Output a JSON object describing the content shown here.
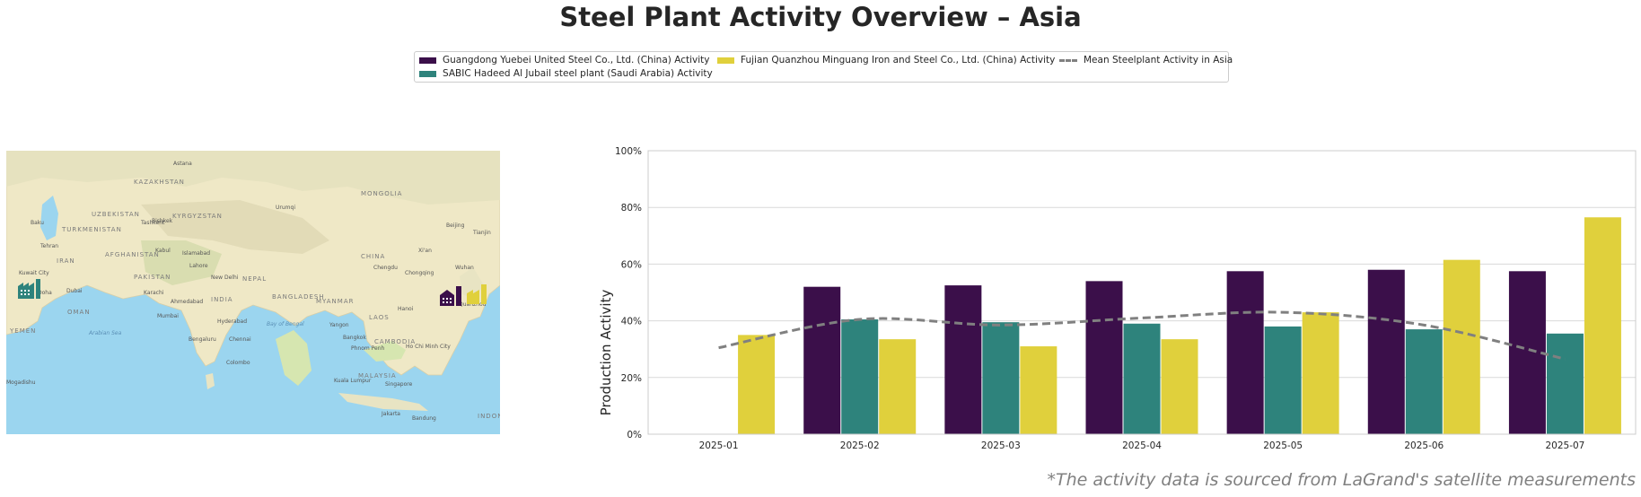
{
  "title": "Steel Plant Activity Overview – Asia",
  "footnote": "*The activity data is sourced from LaGrand's satellite measurements",
  "legend": {
    "items": [
      {
        "label": "Guangdong Yuebei United Steel Co., Ltd. (China) Activity",
        "color": "#3b0f4a",
        "kind": "bar"
      },
      {
        "label": "SABIC Hadeed Al Jubail steel plant (Saudi Arabia) Activity",
        "color": "#2e837c",
        "kind": "bar"
      },
      {
        "label": "Fujian Quanzhou Minguang Iron and Steel Co., Ltd. (China) Activity",
        "color": "#e0d03c",
        "kind": "bar"
      },
      {
        "label": "Mean Steelplant Activity in Asia",
        "color": "#808080",
        "kind": "dashed-line"
      }
    ]
  },
  "map": {
    "labels": [
      "Astana",
      "KAZAKHSTAN",
      "MONGOLIA",
      "Bishkek",
      "UZBEKISTAN",
      "KYRGYZSTAN",
      "Tashkent",
      "TURKMENISTAN",
      "Urumqi",
      "Beijing",
      "Tianjin",
      "Baku",
      "Tehran",
      "IRAN",
      "AFGHANISTAN",
      "Kabul",
      "Islamabad",
      "CHINA",
      "Xi'an",
      "Lahore",
      "PAKISTAN",
      "New Delhi",
      "NEPAL",
      "Chengdu",
      "Chongqing",
      "Wuhan",
      "Kuwait City",
      "Doha",
      "Dubai",
      "Karachi",
      "Ahmedabad",
      "INDIA",
      "BANGLADESH",
      "MYANMAR",
      "Hanoi",
      "Quanzhou",
      "OMAN",
      "Mumbai",
      "Hyderabad",
      "Bay of Bengal",
      "Yangon",
      "LAOS",
      "Bangkok",
      "CAMBODIA",
      "Ho Chi Minh City",
      "Arabian Sea",
      "YEMEN",
      "Bengaluru",
      "Chennai",
      "Phnom Penh",
      "Colombo",
      "MALAYSIA",
      "Kuala Lumpur",
      "Singapore",
      "Jakarta",
      "Bandung",
      "INDONESIA",
      "Mogadishu"
    ],
    "markers": [
      {
        "name": "SABIC Hadeed Al Jubail steel plant",
        "color": "#2e837c",
        "icon": "factory-icon"
      },
      {
        "name": "Guangdong Yuebei United Steel Co., Ltd.",
        "color": "#3b0f4a",
        "icon": "factory-icon"
      },
      {
        "name": "Fujian Quanzhou Minguang Iron and Steel Co., Ltd.",
        "color": "#e0d03c",
        "icon": "factory-icon"
      }
    ]
  },
  "chart_data": {
    "type": "bar",
    "title": "",
    "xlabel": "",
    "ylabel": "Production Activity",
    "categories": [
      "2025-01",
      "2025-02",
      "2025-03",
      "2025-04",
      "2025-05",
      "2025-06",
      "2025-07"
    ],
    "ylim": [
      0,
      100
    ],
    "yticks": [
      "0%",
      "20%",
      "40%",
      "60%",
      "80%",
      "100%"
    ],
    "grid": true,
    "legend_position": "top-center",
    "series": [
      {
        "name": "Guangdong Yuebei United Steel Co., Ltd. (China) Activity",
        "color": "#3b0f4a",
        "values": [
          null,
          52,
          52.5,
          54,
          57.5,
          58,
          57.5
        ]
      },
      {
        "name": "SABIC Hadeed Al Jubail steel plant (Saudi Arabia) Activity",
        "color": "#2e837c",
        "values": [
          null,
          40.5,
          39.5,
          39,
          38,
          37,
          35.5
        ]
      },
      {
        "name": "Fujian Quanzhou Minguang Iron and Steel Co., Ltd. (China) Activity",
        "color": "#e0d03c",
        "values": [
          35,
          33.5,
          31,
          33.5,
          43,
          61.5,
          76.5
        ]
      }
    ],
    "mean_line": {
      "name": "Mean Steelplant Activity in Asia",
      "color": "#808080",
      "values": [
        30.5,
        40.5,
        38.5,
        41,
        43,
        38.5,
        26.5
      ]
    }
  }
}
